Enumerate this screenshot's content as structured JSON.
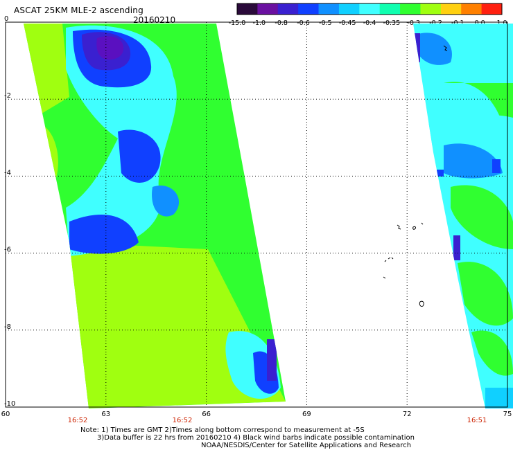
{
  "header": {
    "title": "ASCAT 25KM MLE-2 ascending",
    "date": "20160210"
  },
  "colorbar": {
    "labels": [
      "-15.0",
      "-1.0",
      "-0.8",
      "-0.6",
      "-0.5",
      "-0.45",
      "-0.4",
      "-0.35",
      "-0.3",
      "-0.2",
      "-0.1",
      "0.0",
      "1.0"
    ],
    "colors": [
      "#2a0a3a",
      "#6a10a0",
      "#3a20d0",
      "#1040ff",
      "#1090ff",
      "#10d0ff",
      "#40ffff",
      "#10ffb0",
      "#30ff30",
      "#a0ff10",
      "#ffd010",
      "#ff8000",
      "#ff2010"
    ]
  },
  "map": {
    "lat_labels": [
      "0",
      "-2",
      "-4",
      "-6",
      "-8",
      "-10"
    ],
    "lon_labels": [
      "60",
      "63",
      "66",
      "69",
      "72",
      "75"
    ],
    "times": [
      "16:52",
      "16:52",
      "16:51"
    ]
  },
  "notes": {
    "line1": "Note: 1) Times are GMT 2)Times along bottom correspond to measurement at -5S",
    "line2": "3)Data buffer is 22 hrs from 20160210 4) Black wind barbs indicate possible contamination",
    "line3": "NOAA/NESDIS/Center for Satellite Applications and Research"
  },
  "colors": {
    "swath_green": "#30ff30",
    "swath_yellowgreen": "#a0ff10",
    "swath_cyan": "#40ffff",
    "swath_blue": "#1040ff",
    "swath_purple": "#5a10c0",
    "time_red": "#cc2200"
  }
}
